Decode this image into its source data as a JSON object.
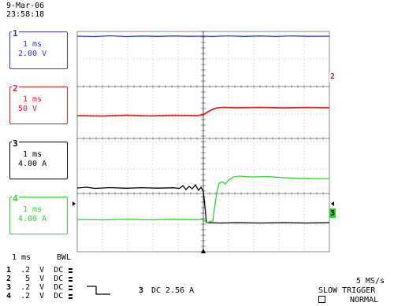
{
  "header": {
    "date": "9-Mar-06",
    "time": "23:58:18"
  },
  "channels": [
    {
      "num": "1",
      "timebase": "1 ms",
      "volt_div": "2.00 V",
      "color": "#2a3ad0"
    },
    {
      "num": "2",
      "timebase": "1 ms",
      "volt_div": "50 V",
      "color": "#e02020"
    },
    {
      "num": "3",
      "timebase": "1 ms",
      "volt_div": "4.00 A",
      "color": "#000000"
    },
    {
      "num": "4",
      "timebase": "1 ms",
      "volt_div": "4.00 A",
      "color": "#30d030"
    }
  ],
  "side_markers": {
    "ch2": "2",
    "ch3": "3"
  },
  "bottom": {
    "timebase": "1 ms",
    "bwl": "BWL",
    "rows": [
      {
        "ch": "1",
        "scale": ".2",
        "unit": "V",
        "coupling": "DC"
      },
      {
        "ch": "2",
        "scale": "5",
        "unit": "V",
        "coupling": "DC"
      },
      {
        "ch": "3",
        "scale": ".2",
        "unit": "V",
        "coupling": "DC"
      },
      {
        "ch": "4",
        "scale": ".2",
        "unit": "V",
        "coupling": "DC"
      }
    ],
    "trigger_channel": "3",
    "trigger_setting": "DC 2.56 A",
    "sample_rate": "5 MS/s",
    "trigger_mode": "SLOW TRIGGER",
    "trigger_type": "NORMAL"
  }
}
